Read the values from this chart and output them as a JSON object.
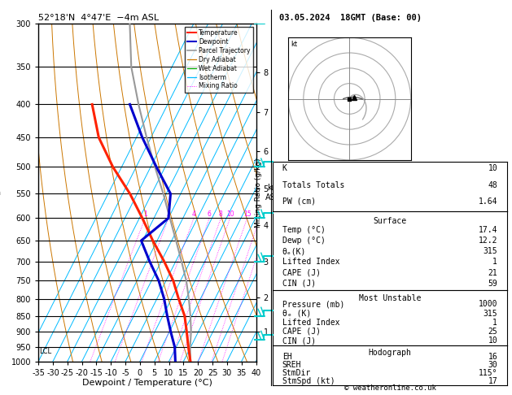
{
  "title_left": "52°18'N  4°47'E  −4m ASL",
  "title_right": "03.05.2024  18GMT (Base: 00)",
  "xlabel": "Dewpoint / Temperature (°C)",
  "pressure_levels": [
    300,
    350,
    400,
    450,
    500,
    550,
    600,
    650,
    700,
    750,
    800,
    850,
    900,
    950,
    1000
  ],
  "temp_range": [
    -35,
    40
  ],
  "isotherm_color": "#00bbff",
  "dry_adiabat_color": "#cc7700",
  "wet_adiabat_color": "#00aa00",
  "mixing_ratio_color": "#ff00ff",
  "temp_color": "#ff2200",
  "dewpoint_color": "#0000cc",
  "parcel_color": "#999999",
  "km_levels": [
    1,
    2,
    3,
    4,
    5,
    6,
    7,
    8
  ],
  "km_pressures": [
    898,
    795,
    701,
    616,
    540,
    472,
    411,
    357
  ],
  "lcl_pressure": 965,
  "stats_k": 10,
  "stats_tt": 48,
  "stats_pw": "1.64",
  "surf_temp": "17.4",
  "surf_dewp": "12.2",
  "surf_theta_e": 315,
  "surf_li": 1,
  "surf_cape": 21,
  "surf_cin": 59,
  "mu_pressure": 1000,
  "mu_theta_e": 315,
  "mu_li": 1,
  "mu_cape": 25,
  "mu_cin": 10,
  "hodo_eh": 16,
  "hodo_sreh": 30,
  "hodo_stmdir": "115°",
  "hodo_stmspd": 17,
  "copyright": "© weatheronline.co.uk",
  "temp_profile_t": [
    17.4,
    14.2,
    11.0,
    7.5,
    2.5,
    -2.5,
    -9.0,
    -16.5,
    -24.0,
    -32.5,
    -43.0,
    -53.0,
    -61.0
  ],
  "temp_profile_p": [
    1000,
    950,
    900,
    850,
    800,
    750,
    700,
    650,
    600,
    550,
    500,
    450,
    400
  ],
  "dewp_profile_t": [
    12.2,
    9.5,
    5.5,
    1.5,
    -2.5,
    -7.5,
    -14.0,
    -20.5,
    -15.0,
    -18.5,
    -28.0,
    -38.0,
    -48.0
  ],
  "dewp_profile_p": [
    1000,
    950,
    900,
    850,
    800,
    750,
    700,
    650,
    600,
    550,
    500,
    450,
    400
  ],
  "parcel_profile_t": [
    17.4,
    14.8,
    12.5,
    9.5,
    6.0,
    2.0,
    -3.0,
    -8.5,
    -14.5,
    -21.0,
    -28.5,
    -36.5,
    -45.0,
    -54.0,
    -62.0
  ],
  "parcel_profile_p": [
    1000,
    950,
    900,
    850,
    800,
    750,
    700,
    650,
    600,
    550,
    500,
    450,
    400,
    350,
    300
  ],
  "wind_barb_pressures": [
    300,
    500,
    600,
    700,
    850,
    925
  ],
  "wind_barb_color": "#00cccc"
}
